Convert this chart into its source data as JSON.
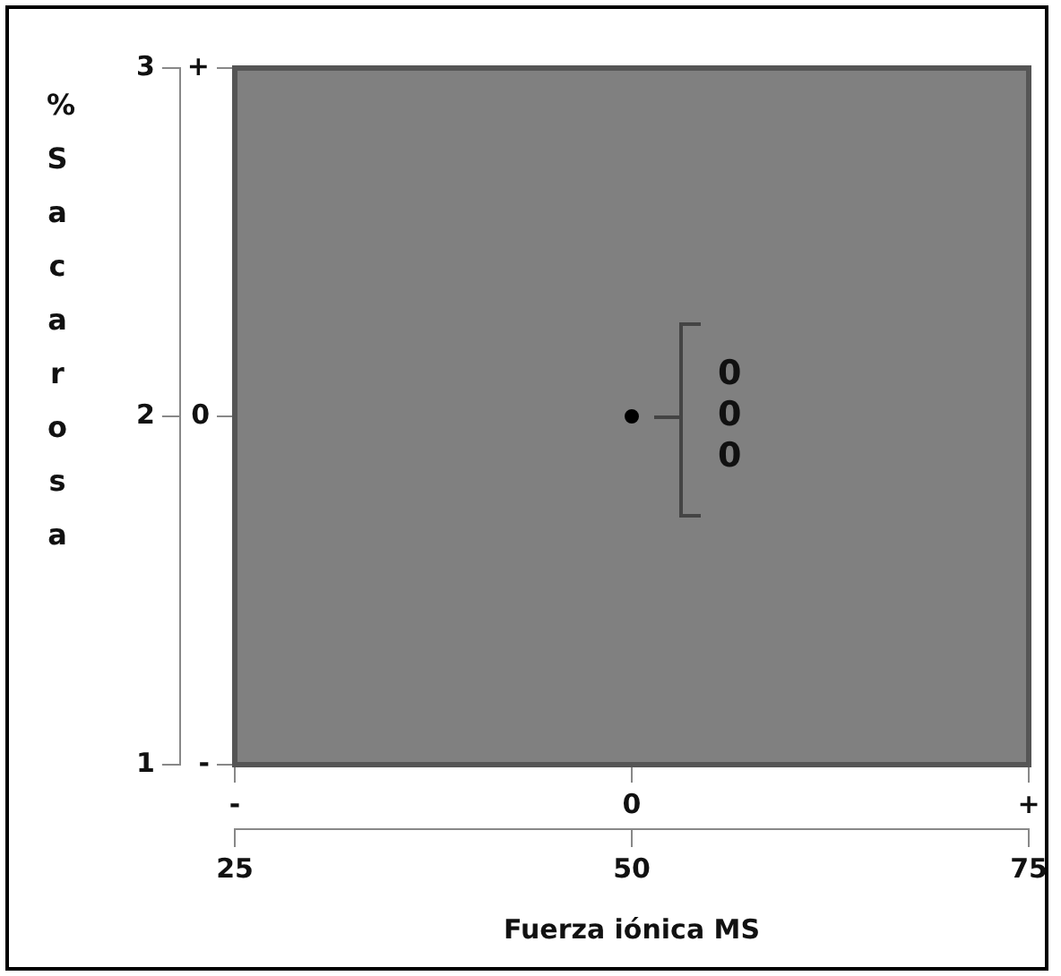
{
  "chart_data": {
    "type": "scatter",
    "xlabel": "Fuerza iónica MS",
    "ylabel": "% Sacarosa",
    "series": [
      {
        "color": "#000000",
        "x": [
          50
        ],
        "values": [
          2
        ]
      }
    ],
    "xlim": [
      25,
      75
    ],
    "xticks": [
      25,
      50,
      75
    ],
    "ylim": [
      1,
      3
    ],
    "yticks": [
      1,
      2,
      3
    ],
    "annotations": [
      "-",
      "0",
      "+",
      "-",
      "0",
      "+",
      "0",
      "0",
      "0"
    ],
    "grid": false,
    "legend": false,
    "marker": "circle"
  }
}
